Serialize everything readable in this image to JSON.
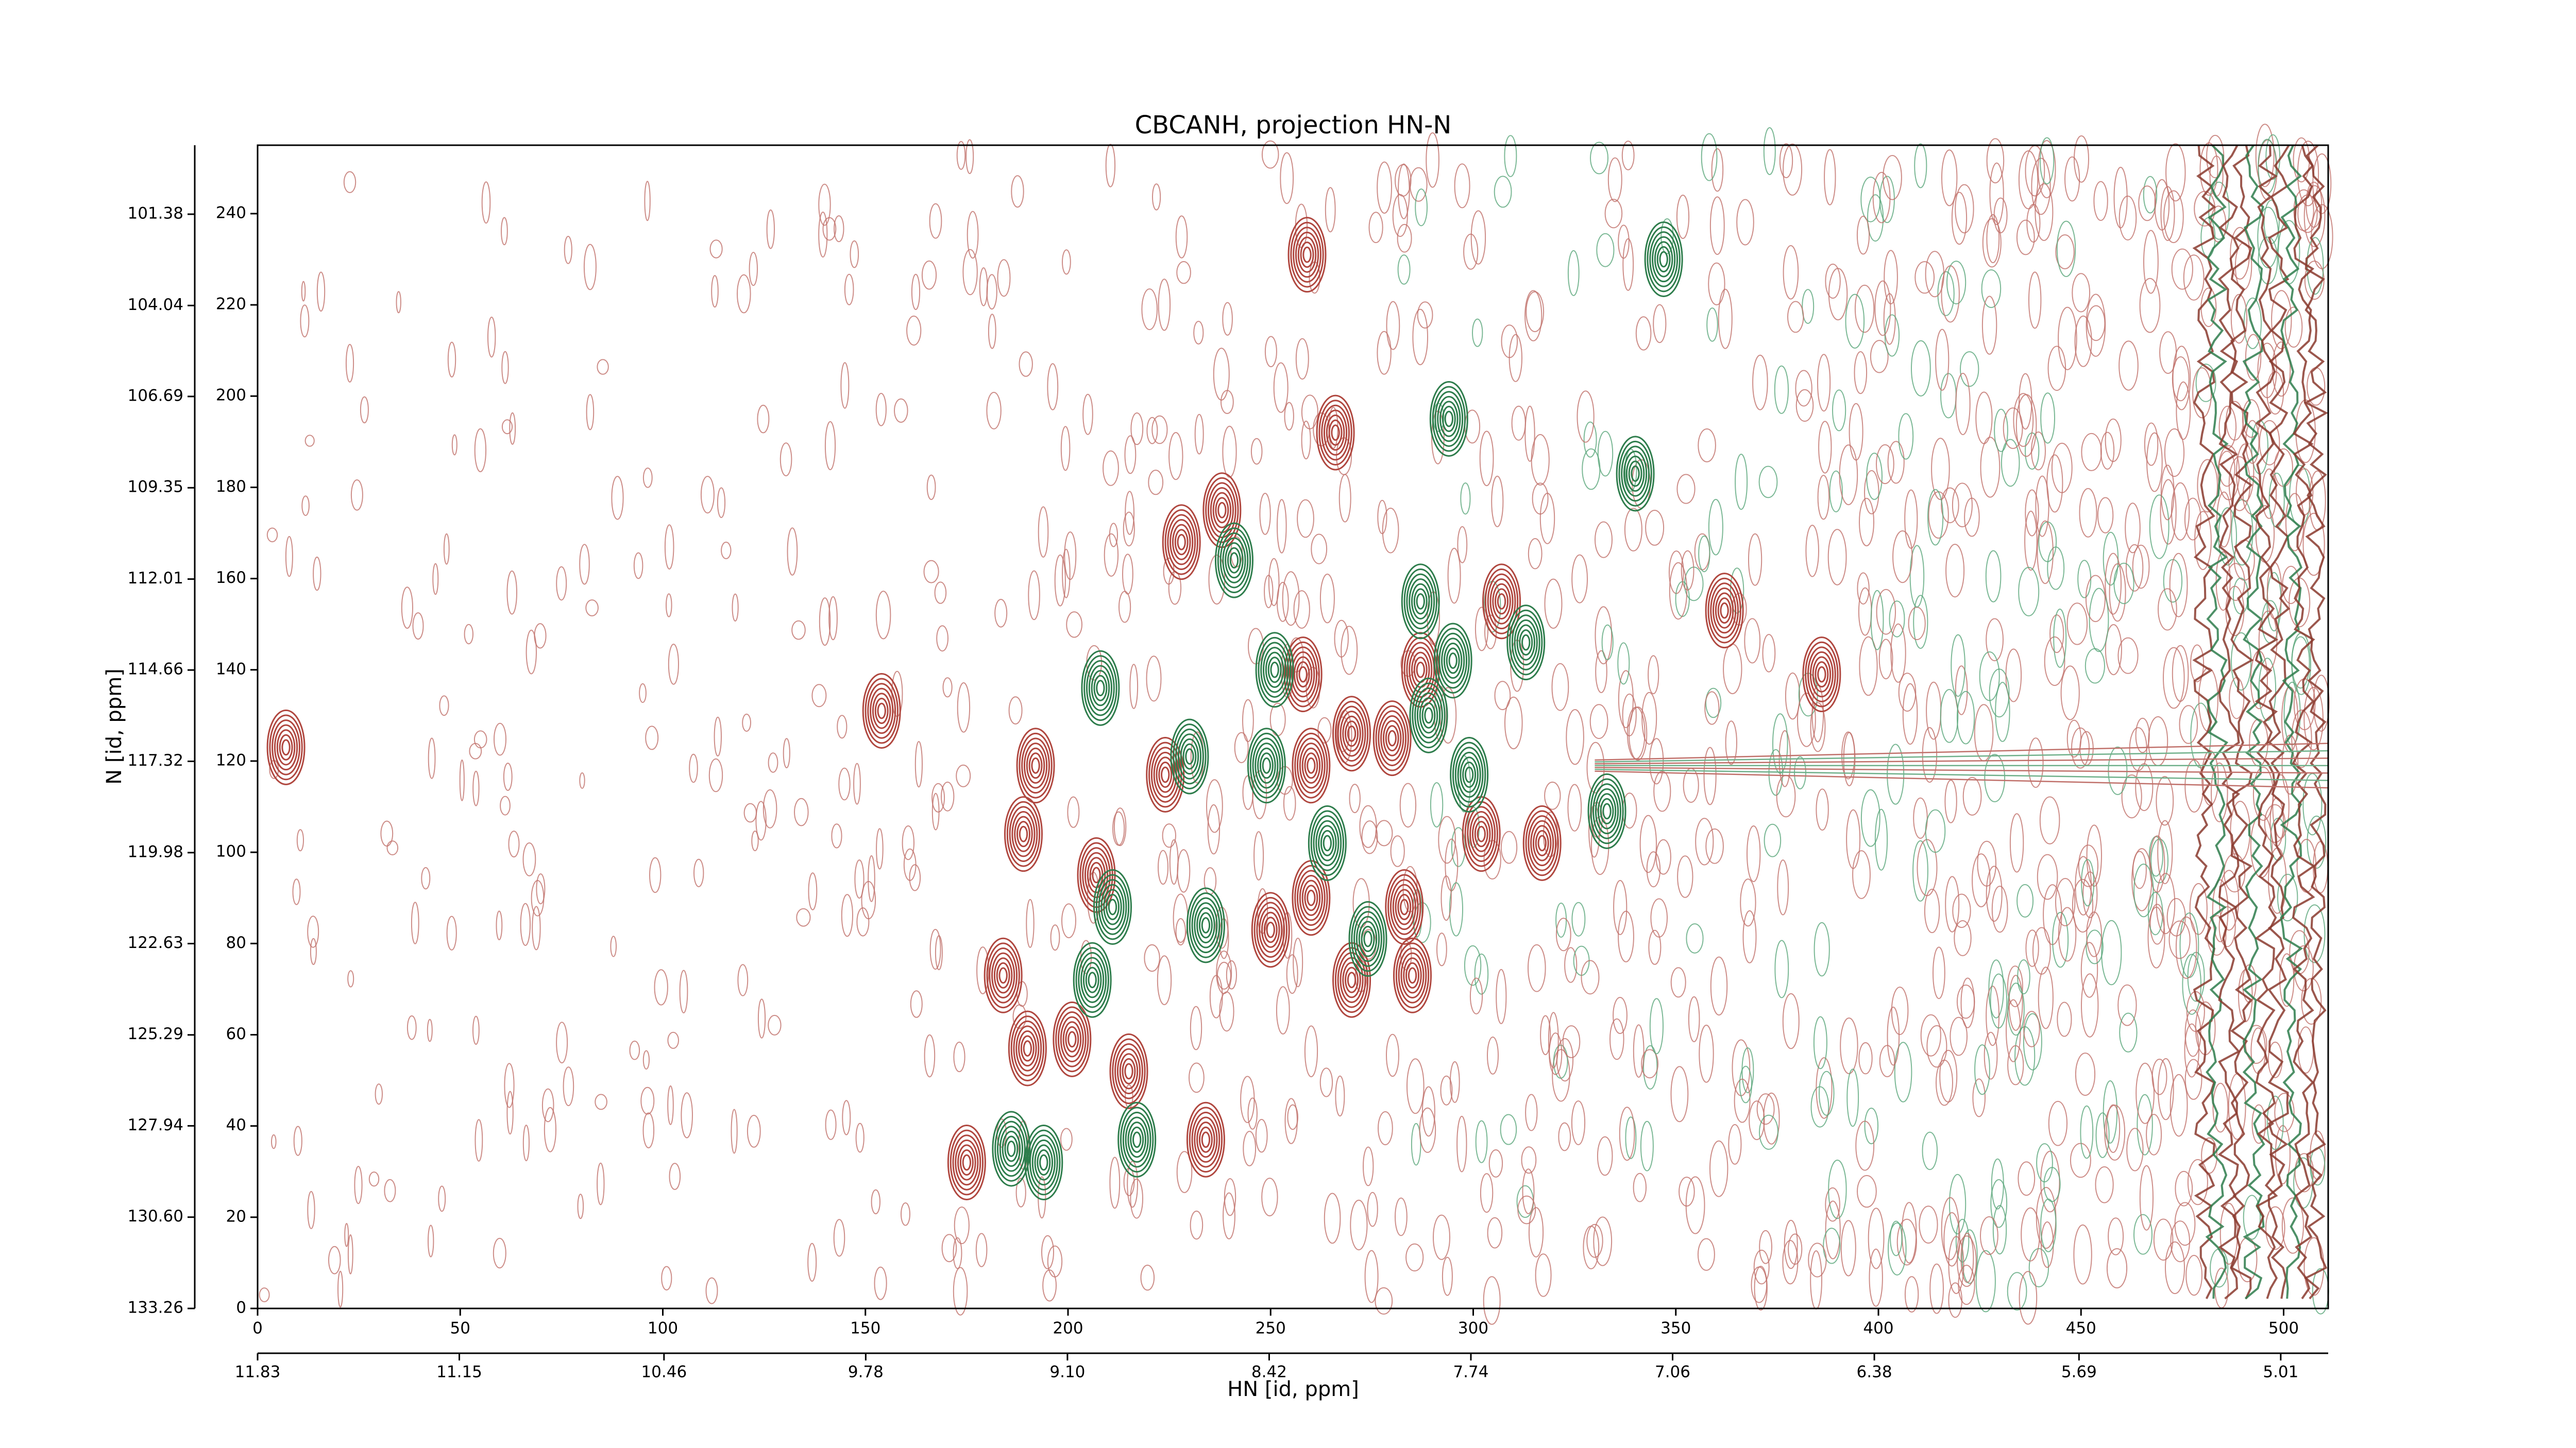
{
  "chart_data": {
    "type": "contour",
    "title": "CBCANH, projection HN-N",
    "xlabel": "HN [id, ppm]",
    "ylabel": "N [id, ppm]",
    "xlim": [
      0,
      511
    ],
    "xticks": [
      0,
      50,
      100,
      150,
      200,
      250,
      300,
      350,
      400,
      450,
      500
    ],
    "ylim": [
      0,
      255
    ],
    "yticks": [
      0,
      20,
      40,
      60,
      80,
      100,
      120,
      140,
      160,
      180,
      200,
      220,
      240
    ],
    "x2lim": [
      11.83,
      4.85
    ],
    "x2ticks": [
      11.83,
      11.15,
      10.46,
      9.78,
      {
        "value": 9.1,
        "label": "9.10"
      },
      8.42,
      7.74,
      7.06,
      6.38,
      5.69,
      5.01
    ],
    "y2lim": [
      133.26,
      99.37
    ],
    "y2ticks": [
      133.26,
      {
        "value": 130.6,
        "label": "130.60"
      },
      127.94,
      125.29,
      122.63,
      119.98,
      117.32,
      114.66,
      112.01,
      109.35,
      106.69,
      104.04,
      101.38
    ],
    "series": [
      {
        "color": "#b0473f",
        "x": [
          259,
          266,
          228,
          238,
          154,
          192,
          189,
          224,
          258,
          270,
          287,
          307,
          260,
          280,
          317,
          302,
          362,
          386,
          207,
          250,
          260,
          283,
          184,
          190,
          201,
          215,
          234,
          175,
          270,
          285,
          7
        ],
        "y": [
          231,
          192,
          168,
          175,
          131,
          119,
          104,
          117,
          139,
          126,
          140,
          155,
          119,
          125,
          102,
          104,
          153,
          139,
          95,
          83,
          90,
          88,
          73,
          57,
          59,
          52,
          37,
          32,
          72,
          73,
          123
        ]
      },
      {
        "color": "#2e7d4c",
        "x": [
          347,
          294,
          241,
          208,
          230,
          251,
          287,
          295,
          313,
          249,
          289,
          299,
          333,
          211,
          234,
          264,
          274,
          206,
          186,
          194,
          217,
          340
        ],
        "y": [
          230,
          195,
          164,
          136,
          121,
          140,
          155,
          142,
          146,
          119,
          130,
          117,
          109,
          88,
          84,
          102,
          81,
          72,
          35,
          32,
          37,
          183
        ]
      }
    ]
  }
}
